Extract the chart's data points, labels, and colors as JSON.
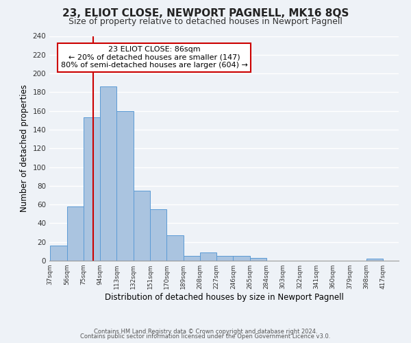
{
  "title": "23, ELIOT CLOSE, NEWPORT PAGNELL, MK16 8QS",
  "subtitle": "Size of property relative to detached houses in Newport Pagnell",
  "xlabel": "Distribution of detached houses by size in Newport Pagnell",
  "ylabel": "Number of detached properties",
  "footer_line1": "Contains HM Land Registry data © Crown copyright and database right 2024.",
  "footer_line2": "Contains public sector information licensed under the Open Government Licence v3.0.",
  "bar_left_edges": [
    37,
    56,
    75,
    94,
    113,
    132,
    151,
    170,
    189,
    208,
    227,
    246,
    265,
    284,
    303,
    322,
    341,
    360,
    379,
    398
  ],
  "bar_heights": [
    16,
    58,
    153,
    186,
    160,
    75,
    55,
    27,
    5,
    9,
    5,
    5,
    3,
    0,
    0,
    0,
    0,
    0,
    0,
    2
  ],
  "bin_width": 19,
  "bar_color": "#aac4e0",
  "bar_edge_color": "#5b9bd5",
  "x_tick_labels": [
    "37sqm",
    "56sqm",
    "75sqm",
    "94sqm",
    "113sqm",
    "132sqm",
    "151sqm",
    "170sqm",
    "189sqm",
    "208sqm",
    "227sqm",
    "246sqm",
    "265sqm",
    "284sqm",
    "303sqm",
    "322sqm",
    "341sqm",
    "360sqm",
    "379sqm",
    "398sqm",
    "417sqm"
  ],
  "ylim": [
    0,
    240
  ],
  "yticks": [
    0,
    20,
    40,
    60,
    80,
    100,
    120,
    140,
    160,
    180,
    200,
    220,
    240
  ],
  "vline_x": 86,
  "vline_color": "#cc0000",
  "annotation_text_line1": "23 ELIOT CLOSE: 86sqm",
  "annotation_text_line2": "← 20% of detached houses are smaller (147)",
  "annotation_text_line3": "80% of semi-detached houses are larger (604) →",
  "bg_color": "#eef2f7",
  "grid_color": "#ffffff",
  "title_fontsize": 11,
  "subtitle_fontsize": 9
}
